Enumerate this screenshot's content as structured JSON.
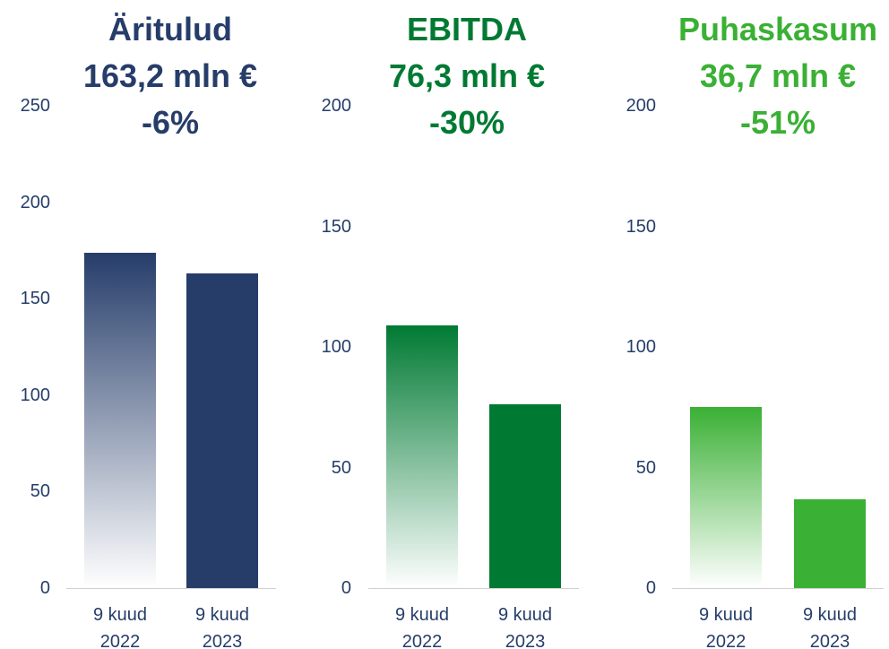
{
  "chart_data": [
    {
      "type": "bar",
      "title": "Äritulud",
      "subtitle": "163,2 mln €",
      "annotation": "-6%",
      "categories": [
        "9 kuud 2022",
        "9 kuud 2023"
      ],
      "values": [
        174,
        163.2
      ],
      "color": "#263d6a",
      "faded": [
        true,
        false
      ],
      "ylim": [
        0,
        250
      ],
      "yticks": [
        0,
        50,
        100,
        150,
        200,
        250
      ]
    },
    {
      "type": "bar",
      "title": "EBITDA",
      "subtitle": "76,3 mln €",
      "annotation": "-30%",
      "categories": [
        "9 kuud 2022",
        "9 kuud 2023"
      ],
      "values": [
        109,
        76.3
      ],
      "color": "#007a33",
      "faded": [
        true,
        false
      ],
      "ylim": [
        0,
        200
      ],
      "yticks": [
        0,
        50,
        100,
        150,
        200
      ]
    },
    {
      "type": "bar",
      "title": "Puhaskasum",
      "subtitle": "36,7 mln €",
      "annotation": "-51%",
      "categories": [
        "9 kuud 2022",
        "9 kuud 2023"
      ],
      "values": [
        75,
        36.7
      ],
      "color": "#3ab034",
      "faded": [
        true,
        false
      ],
      "ylim": [
        0,
        200
      ],
      "yticks": [
        0,
        50,
        100,
        150,
        200
      ]
    }
  ]
}
